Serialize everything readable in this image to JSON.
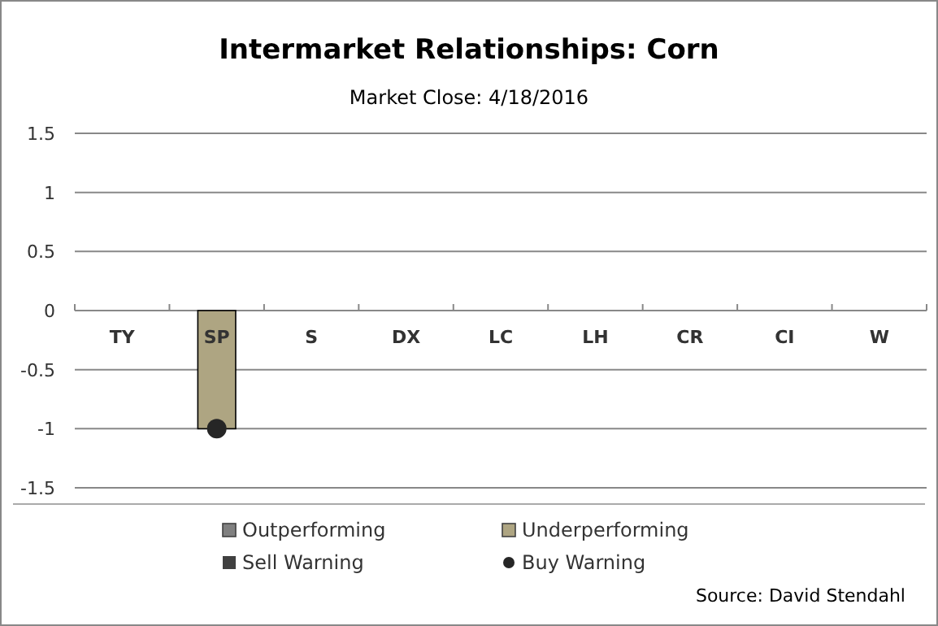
{
  "chart_data": {
    "type": "bar",
    "title": "Intermarket Relationships: Corn",
    "subtitle": "Market Close: 4/18/2016",
    "categories": [
      "TY",
      "SP",
      "S",
      "DX",
      "LC",
      "LH",
      "CR",
      "CI",
      "W"
    ],
    "series": [
      {
        "name": "Outperforming",
        "color": "#808080",
        "values": [
          null,
          null,
          null,
          null,
          null,
          null,
          null,
          null,
          null
        ]
      },
      {
        "name": "Underperforming",
        "color": "#aea582",
        "values": [
          null,
          -1,
          null,
          null,
          null,
          null,
          null,
          null,
          null
        ]
      },
      {
        "name": "Sell Warning",
        "type": "scatter",
        "marker": "square",
        "color": "#404040",
        "values": [
          null,
          null,
          null,
          null,
          null,
          null,
          null,
          null,
          null
        ]
      },
      {
        "name": "Buy Warning",
        "type": "scatter",
        "marker": "circle",
        "color": "#262626",
        "values": [
          null,
          -1,
          null,
          null,
          null,
          null,
          null,
          null,
          null
        ]
      }
    ],
    "ylim": [
      -1.5,
      1.5
    ],
    "yticks": [
      -1.5,
      -1,
      -0.5,
      0,
      0.5,
      1,
      1.5
    ],
    "grid": "y",
    "legend": "bottom",
    "annotations": [
      "Source: David Stendahl"
    ]
  }
}
